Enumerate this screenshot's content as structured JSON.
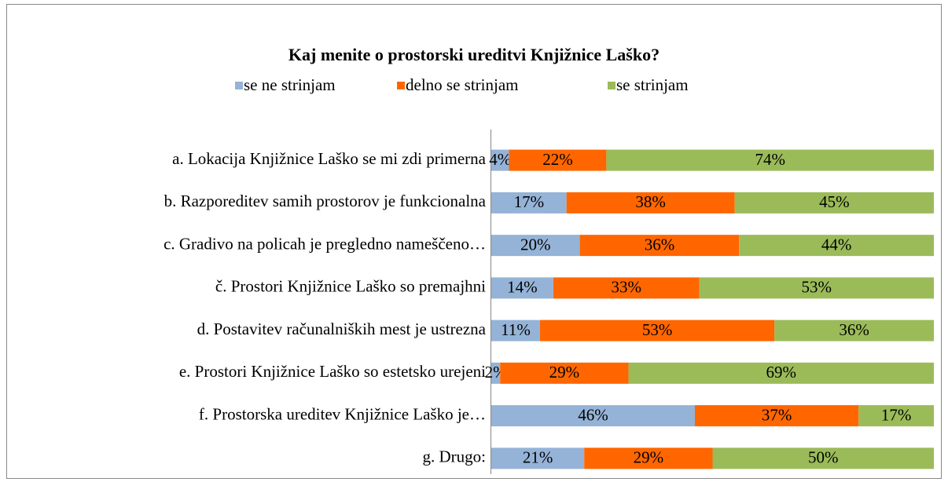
{
  "chart_data": {
    "type": "bar",
    "horizontal": true,
    "stacked": true,
    "title": "Kaj menite o prostorski ureditvi Knjižnice Laško?",
    "legend": "top",
    "categories": [
      "a. Lokacija Knjižnice Laško se mi zdi primerna",
      "b. Razporeditev samih prostorov je funkcionalna",
      "c. Gradivo na policah je pregledno nameščeno…",
      "č. Prostori Knjižnice Laško so premajhni",
      "d. Postavitev računalniških mest je ustrezna",
      "e. Prostori Knjižnice Laško so estetsko urejeni",
      "f. Prostorska ureditev Knjižnice Laško je…",
      "g. Drugo:"
    ],
    "series": [
      {
        "name": "se ne strinjam",
        "color": "#95b3d7",
        "values": [
          4,
          17,
          20,
          14,
          11,
          2,
          46,
          21
        ],
        "value_labels": [
          "4%",
          "17%",
          "20%",
          "14%",
          "11%",
          "2%",
          "46%",
          "21%"
        ]
      },
      {
        "name": "delno se strinjam",
        "color": "#ff6600",
        "values": [
          22,
          38,
          36,
          33,
          53,
          29,
          37,
          29
        ],
        "value_labels": [
          "22%",
          "38%",
          "36%",
          "33%",
          "53%",
          "29%",
          "37%",
          "29%"
        ]
      },
      {
        "name": "se strinjam",
        "color": "#9bbb59",
        "values": [
          74,
          45,
          44,
          53,
          36,
          69,
          17,
          50
        ],
        "value_labels": [
          "74%",
          "45%",
          "44%",
          "53%",
          "36%",
          "69%",
          "17%",
          "50%"
        ]
      }
    ]
  }
}
